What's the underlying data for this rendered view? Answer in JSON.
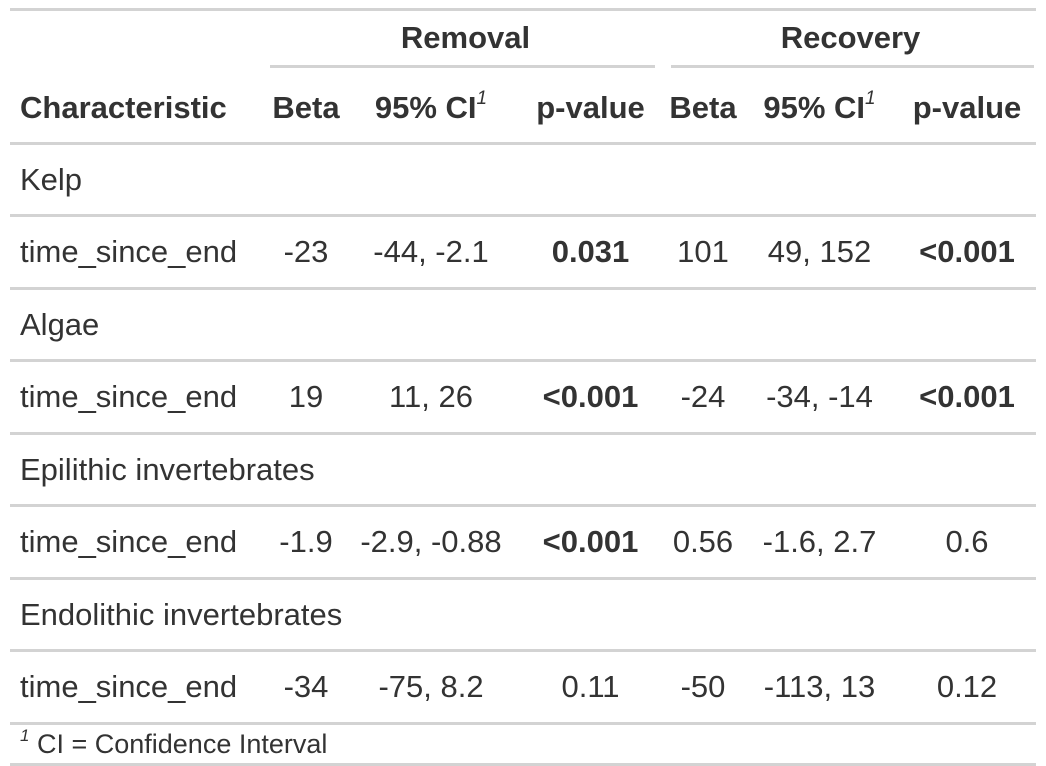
{
  "table": {
    "spanners": {
      "removal": "Removal",
      "recovery": "Recovery"
    },
    "columns": {
      "characteristic": "Characteristic",
      "removal_beta": "Beta",
      "removal_ci": "95% CI",
      "removal_p": "p-value",
      "recovery_beta": "Beta",
      "recovery_ci": "95% CI",
      "recovery_p": "p-value",
      "footnote_mark": "1"
    },
    "groups": [
      {
        "name": "Kelp",
        "row": {
          "label": "time_since_end",
          "removal_beta": "-23",
          "removal_ci": "-44, -2.1",
          "removal_p": "0.031",
          "recovery_beta": "101",
          "recovery_ci": "49, 152",
          "recovery_p": "<0.001"
        }
      },
      {
        "name": "Algae",
        "row": {
          "label": "time_since_end",
          "removal_beta": "19",
          "removal_ci": "11, 26",
          "removal_p": "<0.001",
          "recovery_beta": "-24",
          "recovery_ci": "-34, -14",
          "recovery_p": "<0.001"
        }
      },
      {
        "name": "Epilithic invertebrates",
        "row": {
          "label": "time_since_end",
          "removal_beta": "-1.9",
          "removal_ci": "-2.9, -0.88",
          "removal_p": "<0.001",
          "recovery_beta": "0.56",
          "recovery_ci": "-1.6, 2.7",
          "recovery_p": "0.6"
        }
      },
      {
        "name": "Endolithic invertebrates",
        "row": {
          "label": "time_since_end",
          "removal_beta": "-34",
          "removal_ci": "-75, 8.2",
          "removal_p": "0.11",
          "recovery_beta": "-50",
          "recovery_ci": "-113, 13",
          "recovery_p": "0.12"
        }
      }
    ],
    "footnote": {
      "mark": "1",
      "text": " CI = Confidence Interval"
    }
  },
  "colors": {
    "text": "#333333",
    "rule": "#d3d3d3"
  }
}
